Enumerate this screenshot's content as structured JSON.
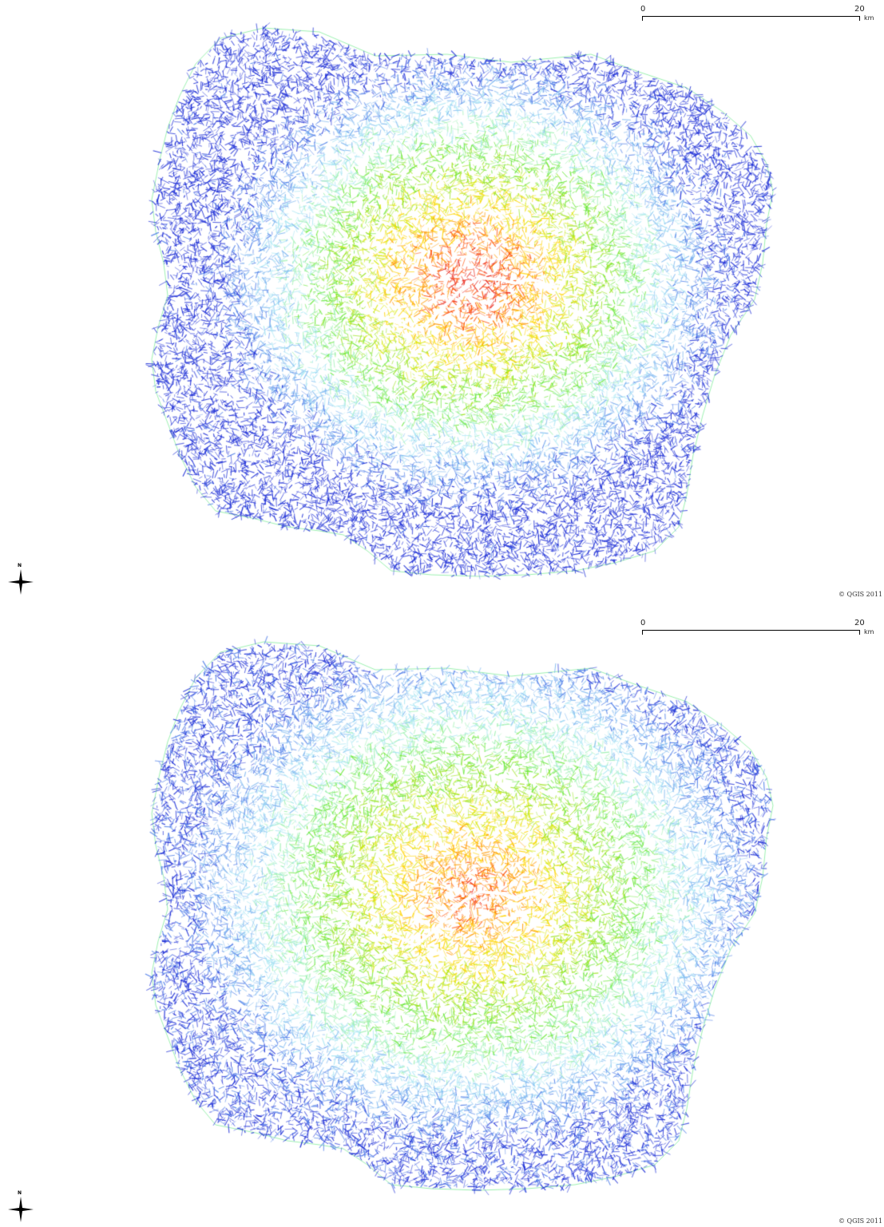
{
  "maps": [
    {
      "id": "top",
      "scalebar": {
        "start_label": "0",
        "end_label": "20",
        "unit_label": "km"
      },
      "north_label": "N",
      "copyright": "© QGIS 2011",
      "palette": [
        "#1e2fd6",
        "#4f7ee8",
        "#7fb8f0",
        "#a9e6f3",
        "#9cf0b0",
        "#6ce83a",
        "#9be31e",
        "#d9e812",
        "#ffd400",
        "#ff9a00",
        "#ff4d00",
        "#e81b0e"
      ],
      "core_intensity": 1.0,
      "spread": 0.55,
      "seed": 11
    },
    {
      "id": "bottom",
      "scalebar": {
        "start_label": "0",
        "end_label": "20",
        "unit_label": "km"
      },
      "north_label": "N",
      "copyright": "© QGIS 2011",
      "palette": [
        "#1e2fd6",
        "#4f7ee8",
        "#7fb8f0",
        "#a9e6f3",
        "#9cf0b0",
        "#6ce83a",
        "#9be31e",
        "#d9e812",
        "#ffd400",
        "#ff9a00",
        "#ff4d00",
        "#e81b0e"
      ],
      "core_intensity": 0.85,
      "spread": 0.72,
      "seed": 23
    }
  ]
}
